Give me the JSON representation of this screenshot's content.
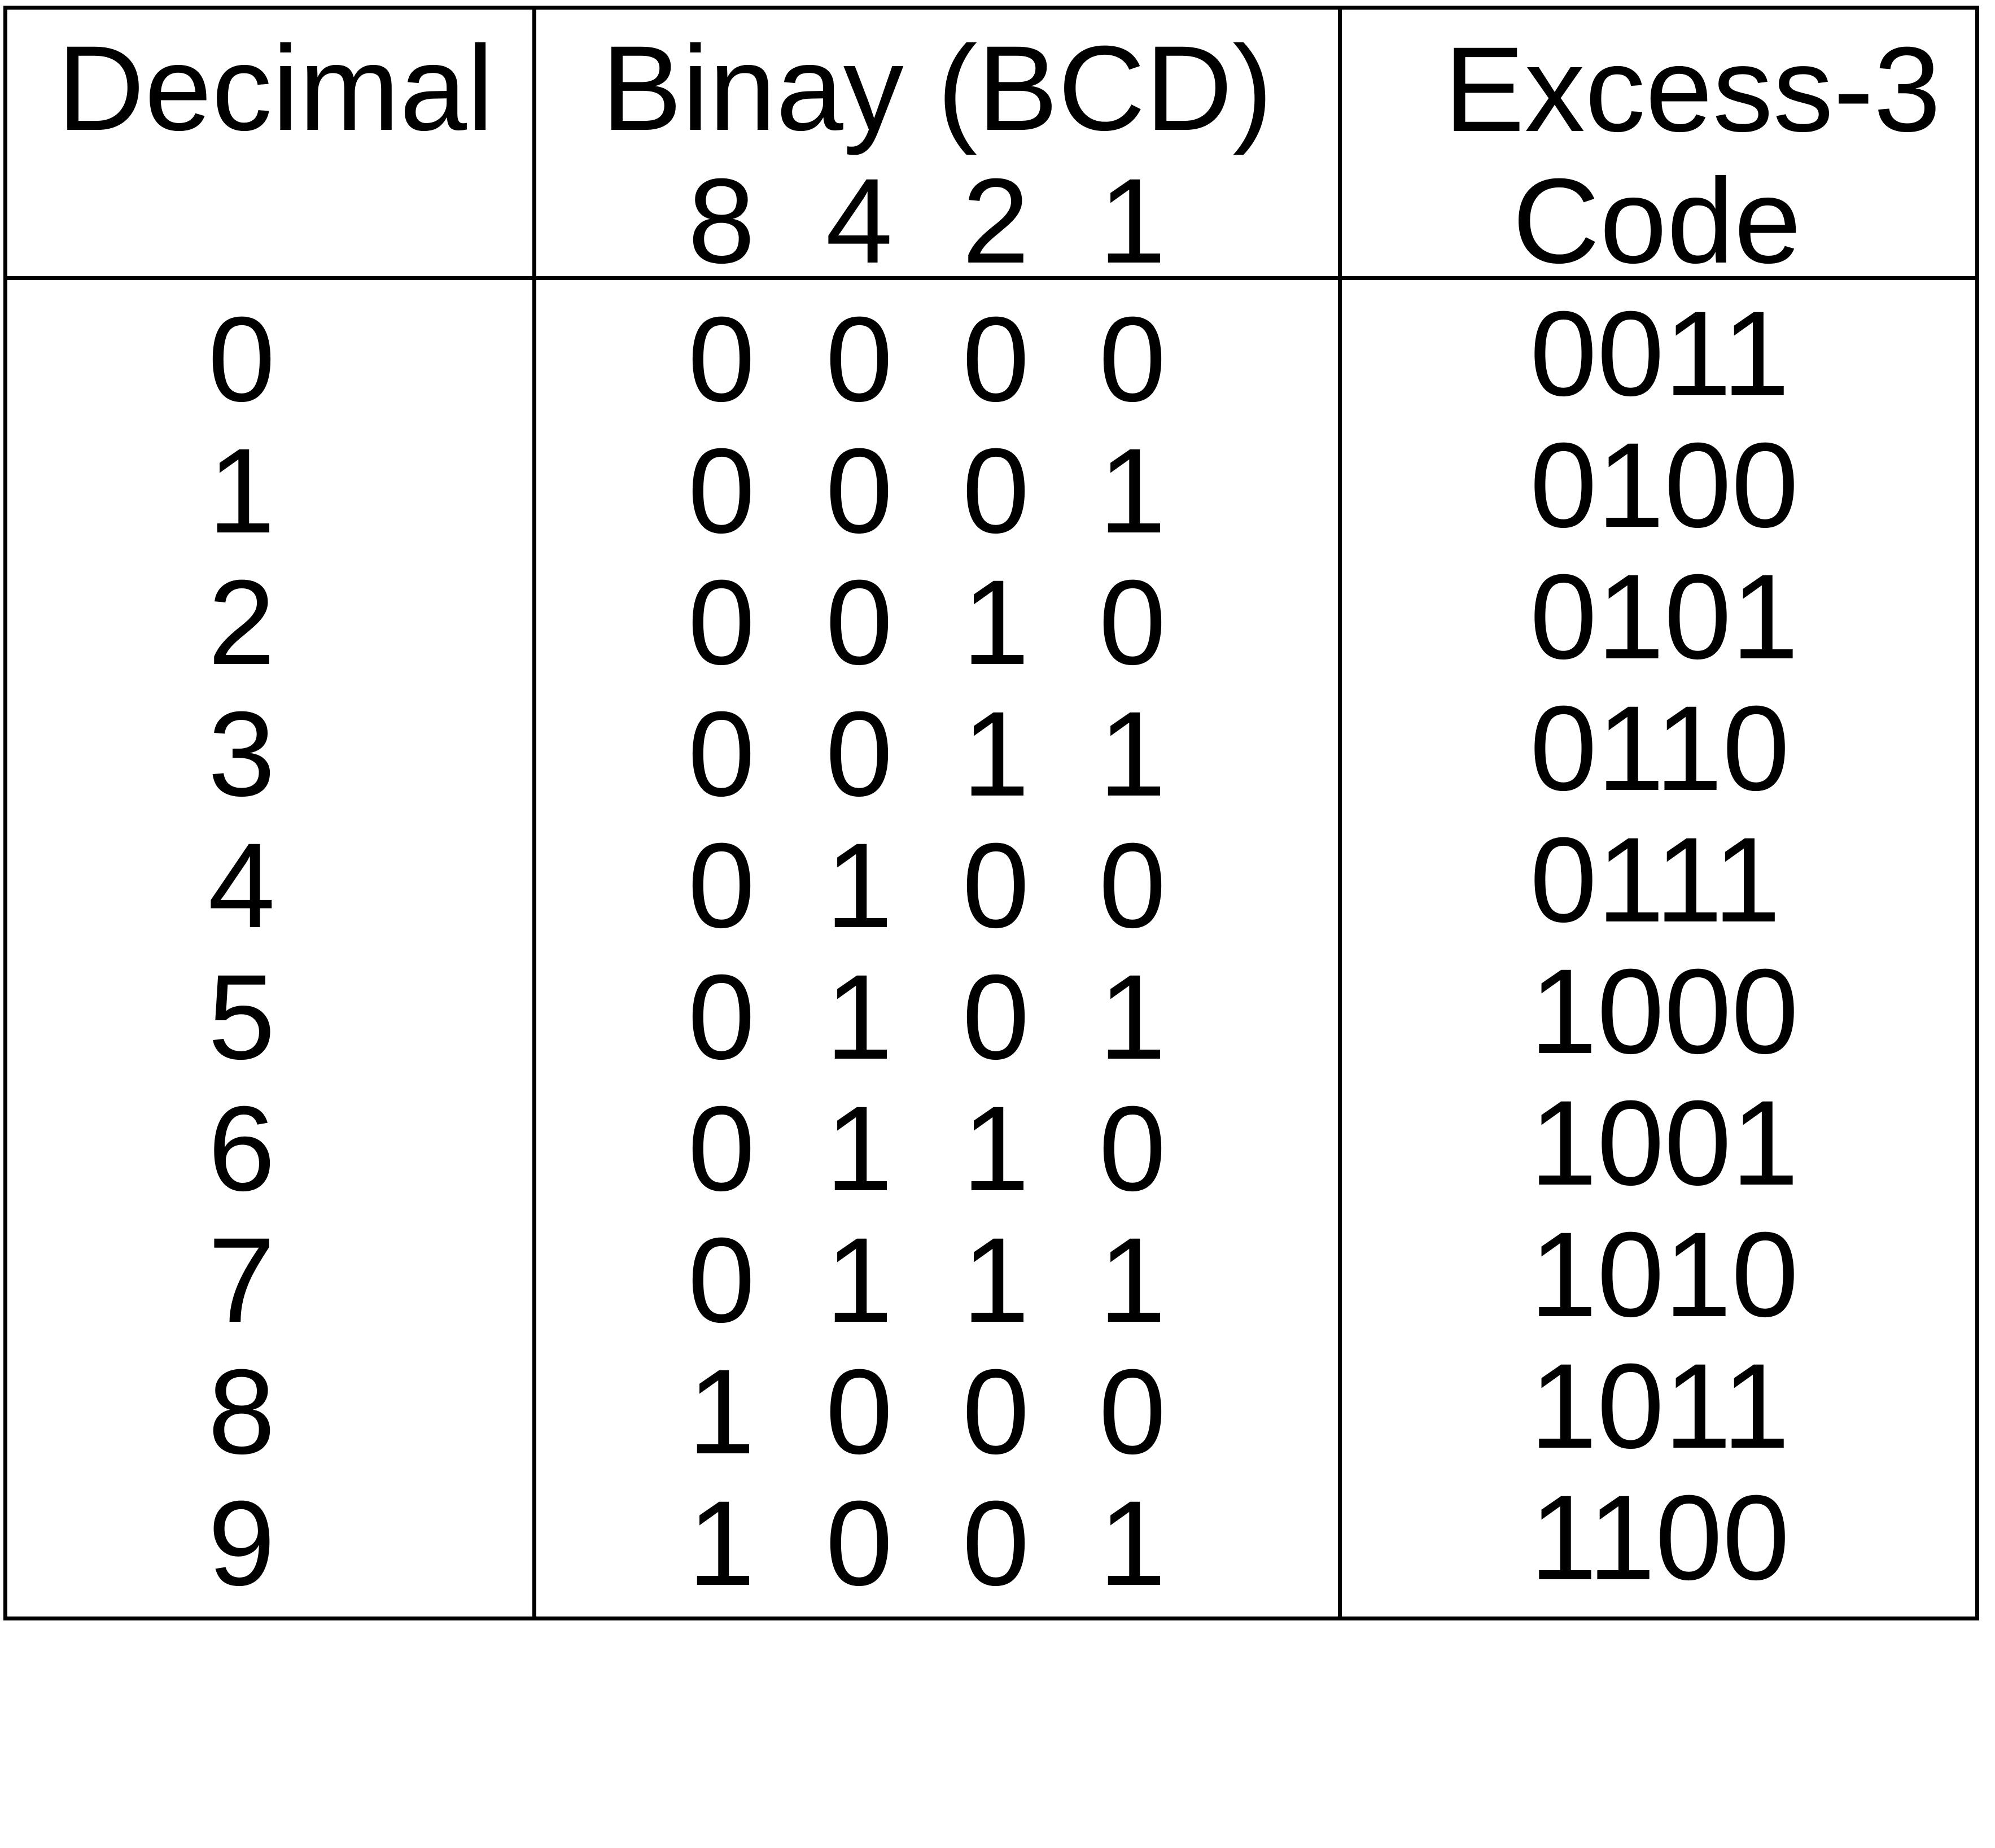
{
  "headers": {
    "decimal": "Decimal",
    "binary_line1": "Binay (BCD)",
    "binary_weights": [
      "8",
      "4",
      "2",
      "1"
    ],
    "excess3_line1": "Excess-3",
    "excess3_line2": "Code"
  },
  "rows": [
    {
      "decimal": "0",
      "bits": [
        "0",
        "0",
        "0",
        "0"
      ],
      "excess3": "0011"
    },
    {
      "decimal": "1",
      "bits": [
        "0",
        "0",
        "0",
        "1"
      ],
      "excess3": "0100"
    },
    {
      "decimal": "2",
      "bits": [
        "0",
        "0",
        "1",
        "0"
      ],
      "excess3": "0101"
    },
    {
      "decimal": "3",
      "bits": [
        "0",
        "0",
        "1",
        "1"
      ],
      "excess3": "0110"
    },
    {
      "decimal": "4",
      "bits": [
        "0",
        "1",
        "0",
        "0"
      ],
      "excess3": "0111"
    },
    {
      "decimal": "5",
      "bits": [
        "0",
        "1",
        "0",
        "1"
      ],
      "excess3": "1000"
    },
    {
      "decimal": "6",
      "bits": [
        "0",
        "1",
        "1",
        "0"
      ],
      "excess3": "1001"
    },
    {
      "decimal": "7",
      "bits": [
        "0",
        "1",
        "1",
        "1"
      ],
      "excess3": "1010"
    },
    {
      "decimal": "8",
      "bits": [
        "1",
        "0",
        "0",
        "0"
      ],
      "excess3": "1011"
    },
    {
      "decimal": "9",
      "bits": [
        "1",
        "0",
        "0",
        "1"
      ],
      "excess3": "1100"
    }
  ],
  "colors": {
    "text": "#000000",
    "lines": "#000000",
    "background": "#ffffff"
  }
}
